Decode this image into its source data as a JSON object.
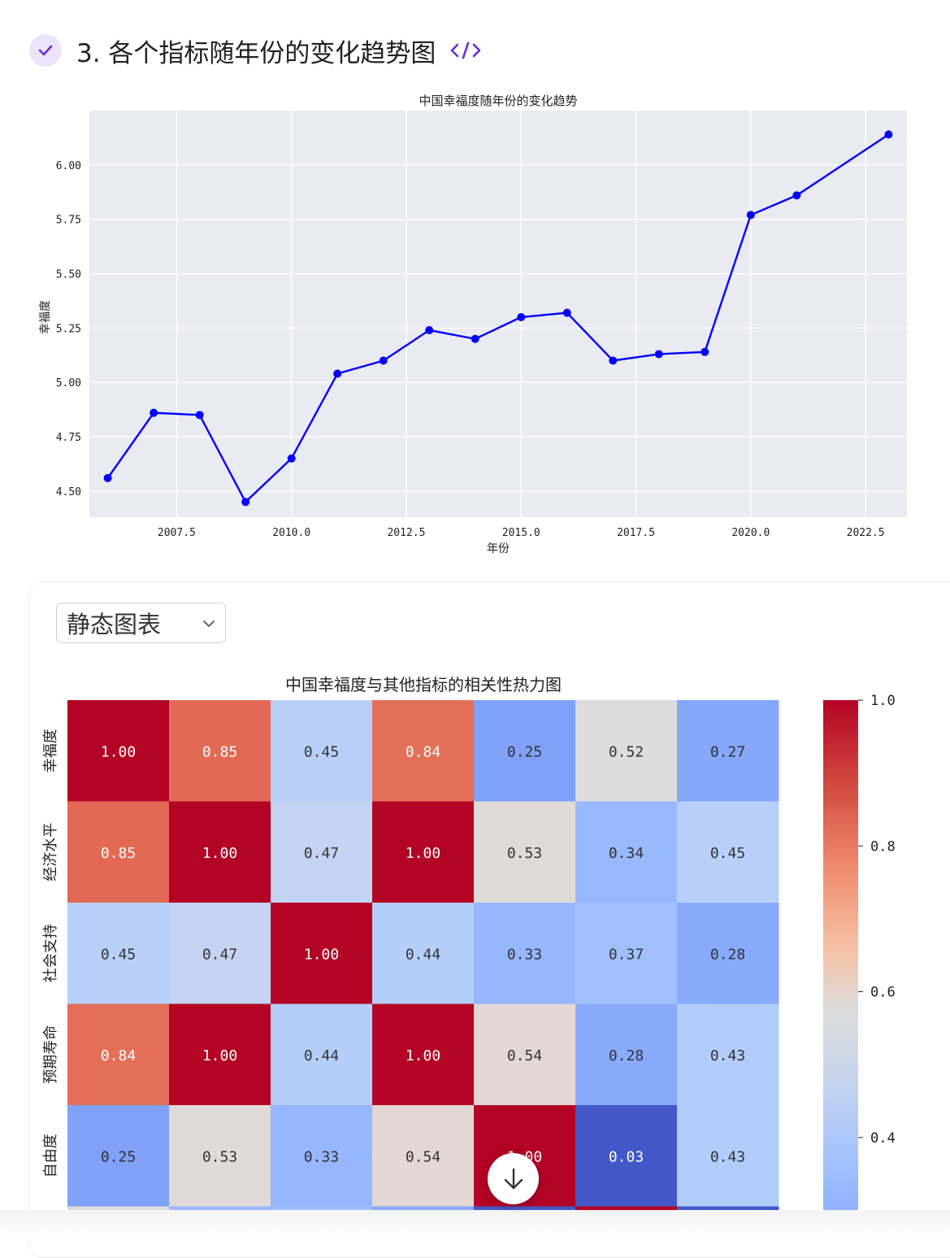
{
  "step": {
    "title": "3. 各个指标随年份的变化趋势图",
    "check_icon": "check-icon",
    "code_icon": "code-icon",
    "accent": "#6d28d9"
  },
  "view_select": {
    "selected": "静态图表",
    "chevron_icon": "chevron-down-icon"
  },
  "chart_data": [
    {
      "type": "line",
      "title": "中国幸福度随年份的变化趋势",
      "xlabel": "年份",
      "ylabel": "幸福度",
      "x": [
        2006,
        2007,
        2008,
        2009,
        2010,
        2011,
        2012,
        2013,
        2014,
        2015,
        2016,
        2017,
        2018,
        2019,
        2020,
        2021,
        2023
      ],
      "y": [
        4.56,
        4.86,
        4.85,
        4.45,
        4.65,
        5.04,
        5.1,
        5.24,
        5.2,
        5.3,
        5.32,
        5.1,
        5.13,
        5.14,
        5.77,
        5.86,
        6.14
      ],
      "xlim": [
        2005.6,
        2023.4
      ],
      "ylim": [
        4.38,
        6.25
      ],
      "xticks": [
        "2007.5",
        "2010.0",
        "2012.5",
        "2015.0",
        "2017.5",
        "2020.0",
        "2022.5"
      ],
      "yticks": [
        "4.50",
        "4.75",
        "5.00",
        "5.25",
        "5.50",
        "5.75",
        "6.00"
      ],
      "line_color": "#0000ff",
      "background": "#eaeaf2",
      "grid": true
    },
    {
      "type": "heatmap",
      "title": "中国幸福度与其他指标的相关性热力图",
      "row_labels": [
        "幸福度",
        "经济水平",
        "社会支持",
        "预期寿命",
        "自由度"
      ],
      "matrix": [
        [
          1.0,
          0.85,
          0.45,
          0.84,
          0.25,
          0.52,
          0.27
        ],
        [
          0.85,
          1.0,
          0.47,
          1.0,
          0.53,
          0.34,
          0.45
        ],
        [
          0.45,
          0.47,
          1.0,
          0.44,
          0.33,
          0.37,
          0.28
        ],
        [
          0.84,
          1.0,
          0.44,
          1.0,
          0.54,
          0.28,
          0.43
        ],
        [
          0.25,
          0.53,
          0.33,
          0.54,
          1.0,
          0.03,
          0.43
        ]
      ],
      "cell_labels": [
        [
          "1.00",
          "0.85",
          "0.45",
          "0.84",
          "0.25",
          "0.52",
          "0.27"
        ],
        [
          "0.85",
          "1.00",
          "0.47",
          "1.00",
          "0.53",
          "0.34",
          "0.45"
        ],
        [
          "0.45",
          "0.47",
          "1.00",
          "0.44",
          "0.33",
          "0.37",
          "0.28"
        ],
        [
          "0.84",
          "1.00",
          "0.44",
          "1.00",
          "0.54",
          "0.28",
          "0.43"
        ],
        [
          "0.25",
          "0.53",
          "0.33",
          "0.54",
          "1.00",
          "0.03",
          "0.43"
        ]
      ],
      "colormap": "coolwarm",
      "colorbar_ticks": [
        "1.0",
        "0.8",
        "0.6",
        "0.4"
      ]
    }
  ],
  "scroll_button": {
    "icon": "arrow-down-icon"
  }
}
